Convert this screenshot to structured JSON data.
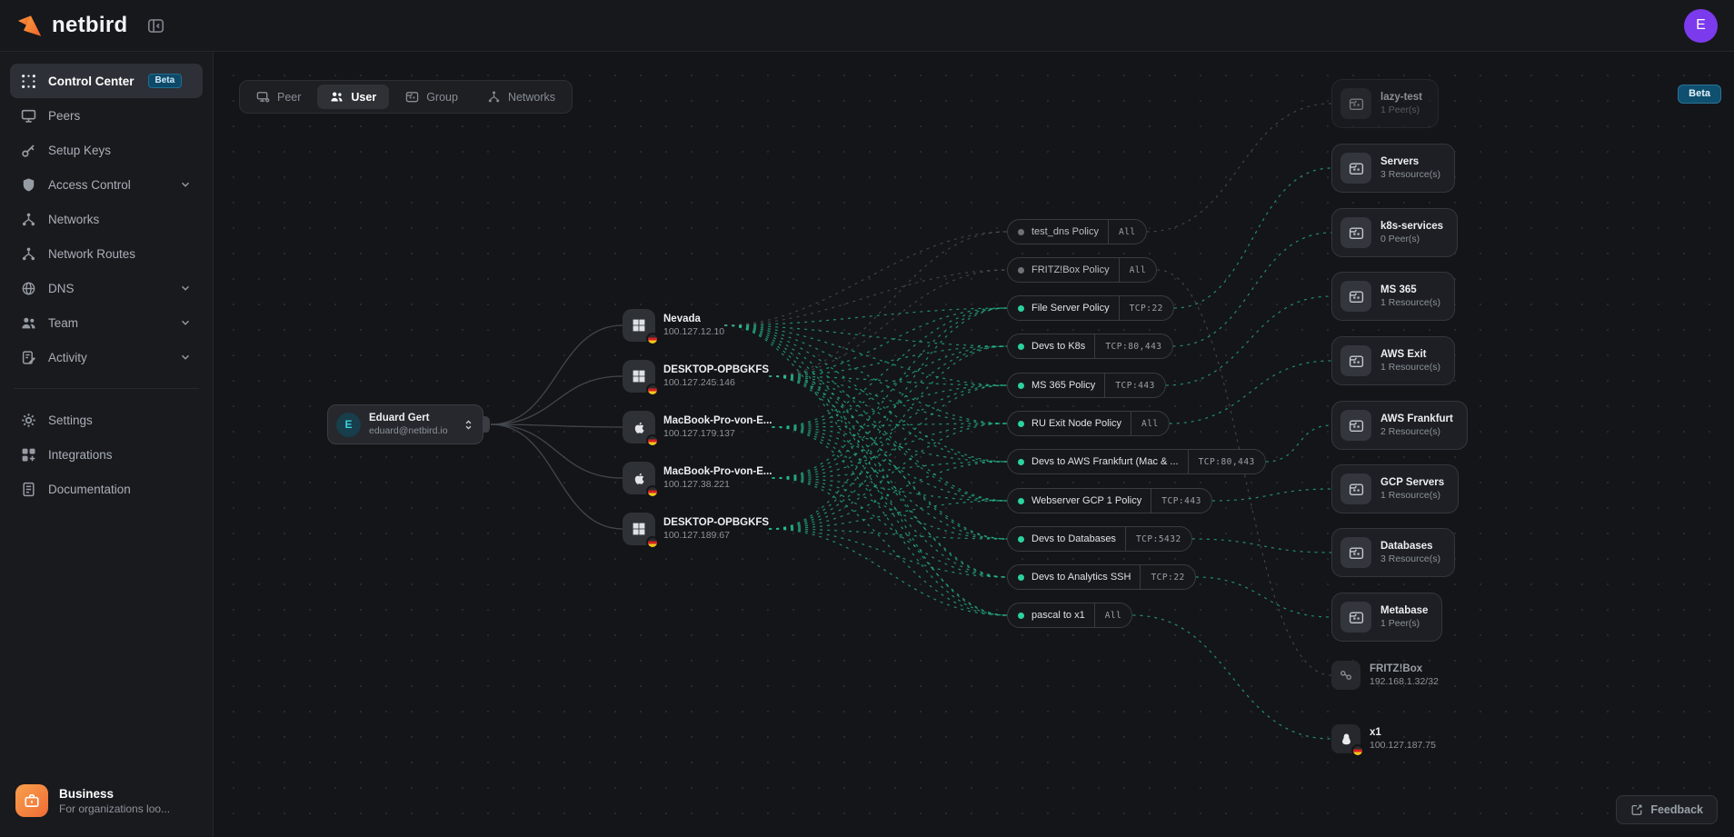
{
  "header": {
    "brand": "netbird",
    "avatar_initial": "E"
  },
  "sidebar": {
    "items": [
      {
        "label": "Control Center",
        "badge": "Beta",
        "selected": true
      },
      {
        "label": "Peers"
      },
      {
        "label": "Setup Keys"
      },
      {
        "label": "Access Control",
        "expandable": true
      },
      {
        "label": "Networks"
      },
      {
        "label": "Network Routes"
      },
      {
        "label": "DNS",
        "expandable": true
      },
      {
        "label": "Team",
        "expandable": true
      },
      {
        "label": "Activity",
        "expandable": true
      }
    ],
    "secondary": [
      {
        "label": "Settings"
      },
      {
        "label": "Integrations"
      },
      {
        "label": "Documentation"
      }
    ],
    "business": {
      "title": "Business",
      "subtitle": "For organizations loo..."
    }
  },
  "canvas": {
    "tabs": [
      {
        "label": "Peer"
      },
      {
        "label": "User",
        "selected": true
      },
      {
        "label": "Group"
      },
      {
        "label": "Networks"
      }
    ],
    "beta_badge": "Beta",
    "feedback_label": "Feedback"
  },
  "graph": {
    "user": {
      "name": "Eduard Gert",
      "email": "eduard@netbird.io",
      "initial": "E"
    },
    "peers": [
      {
        "name": "Nevada",
        "ip": "100.127.12.10",
        "os": "windows"
      },
      {
        "name": "DESKTOP-OPBGKFS",
        "ip": "100.127.245.146",
        "os": "windows"
      },
      {
        "name": "MacBook-Pro-von-E...",
        "ip": "100.127.179.137",
        "os": "apple"
      },
      {
        "name": "MacBook-Pro-von-E...",
        "ip": "100.127.38.221",
        "os": "apple"
      },
      {
        "name": "DESKTOP-OPBGKFS",
        "ip": "100.127.189.67",
        "os": "windows"
      }
    ],
    "policies": [
      {
        "label": "test_dns Policy",
        "ports": "All",
        "active": false
      },
      {
        "label": "FRITZ!Box Policy",
        "ports": "All",
        "active": false
      },
      {
        "label": "File Server Policy",
        "ports": "TCP:22",
        "active": true
      },
      {
        "label": "Devs to K8s",
        "ports": "TCP:80,443",
        "active": true
      },
      {
        "label": "MS 365 Policy",
        "ports": "TCP:443",
        "active": true
      },
      {
        "label": "RU Exit Node Policy",
        "ports": "All",
        "active": true
      },
      {
        "label": "Devs to AWS Frankfurt (Mac & ...",
        "ports": "TCP:80,443",
        "active": true
      },
      {
        "label": "Webserver GCP 1 Policy",
        "ports": "TCP:443",
        "active": true
      },
      {
        "label": "Devs to Databases",
        "ports": "TCP:5432",
        "active": true
      },
      {
        "label": "Devs to Analytics SSH",
        "ports": "TCP:22",
        "active": true
      },
      {
        "label": "pascal to x1",
        "ports": "All",
        "active": true
      }
    ],
    "destinations": [
      {
        "label": "lazy-test",
        "sublabel": "1 Peer(s)",
        "icon": "group"
      },
      {
        "label": "Servers",
        "sublabel": "3 Resource(s)",
        "icon": "group"
      },
      {
        "label": "k8s-services",
        "sublabel": "0 Peer(s)",
        "icon": "group"
      },
      {
        "label": "MS 365",
        "sublabel": "1 Resource(s)",
        "icon": "group"
      },
      {
        "label": "AWS Exit",
        "sublabel": "1 Resource(s)",
        "icon": "group"
      },
      {
        "label": "AWS Frankfurt",
        "sublabel": "2 Resource(s)",
        "icon": "group"
      },
      {
        "label": "GCP Servers",
        "sublabel": "1 Resource(s)",
        "icon": "group"
      },
      {
        "label": "Databases",
        "sublabel": "3 Resource(s)",
        "icon": "group"
      },
      {
        "label": "Metabase",
        "sublabel": "1 Peer(s)",
        "icon": "group"
      },
      {
        "label": "FRITZ!Box",
        "sublabel": "192.168.1.32/32",
        "icon": "link"
      },
      {
        "label": "x1",
        "sublabel": "100.127.187.75",
        "icon": "linux"
      }
    ],
    "edges": [
      {
        "style": "solid",
        "sources": [
          "user"
        ],
        "targets": [
          "peer-0",
          "peer-1",
          "peer-2",
          "peer-3",
          "peer-4"
        ]
      },
      {
        "style": "green",
        "sources": [
          "peer-0",
          "peer-1",
          "peer-2",
          "peer-3",
          "peer-4"
        ],
        "targets": [
          "policy-2",
          "policy-3",
          "policy-4",
          "policy-5",
          "policy-6",
          "policy-7",
          "policy-8",
          "policy-9",
          "policy-10"
        ]
      },
      {
        "style": "gray",
        "sources": [
          "peer-0",
          "peer-1"
        ],
        "targets": [
          "policy-0",
          "policy-1"
        ]
      },
      {
        "style": "gray",
        "sources": [
          "policy-0"
        ],
        "targets": [
          "dest-0"
        ]
      },
      {
        "style": "gray",
        "sources": [
          "policy-1"
        ],
        "targets": [
          "dest-9"
        ]
      },
      {
        "style": "green",
        "sources": [
          "policy-2"
        ],
        "targets": [
          "dest-1"
        ]
      },
      {
        "style": "green",
        "sources": [
          "policy-3"
        ],
        "targets": [
          "dest-2"
        ]
      },
      {
        "style": "green",
        "sources": [
          "policy-4"
        ],
        "targets": [
          "dest-3"
        ]
      },
      {
        "style": "green",
        "sources": [
          "policy-5"
        ],
        "targets": [
          "dest-4"
        ]
      },
      {
        "style": "green",
        "sources": [
          "policy-6"
        ],
        "targets": [
          "dest-5"
        ]
      },
      {
        "style": "green",
        "sources": [
          "policy-7"
        ],
        "targets": [
          "dest-6"
        ]
      },
      {
        "style": "green",
        "sources": [
          "policy-8"
        ],
        "targets": [
          "dest-7"
        ]
      },
      {
        "style": "green",
        "sources": [
          "policy-9"
        ],
        "targets": [
          "dest-8"
        ]
      },
      {
        "style": "green",
        "sources": [
          "policy-10"
        ],
        "targets": [
          "dest-10"
        ]
      }
    ]
  },
  "colors": {
    "accent_green": "#26c28e",
    "accent_orange": "#f5793b",
    "badge_blue": "#0f4f6f",
    "avatar_purple": "#7c3aed",
    "edge_gray": "#7b8187",
    "edge_solid": "#45494f"
  }
}
